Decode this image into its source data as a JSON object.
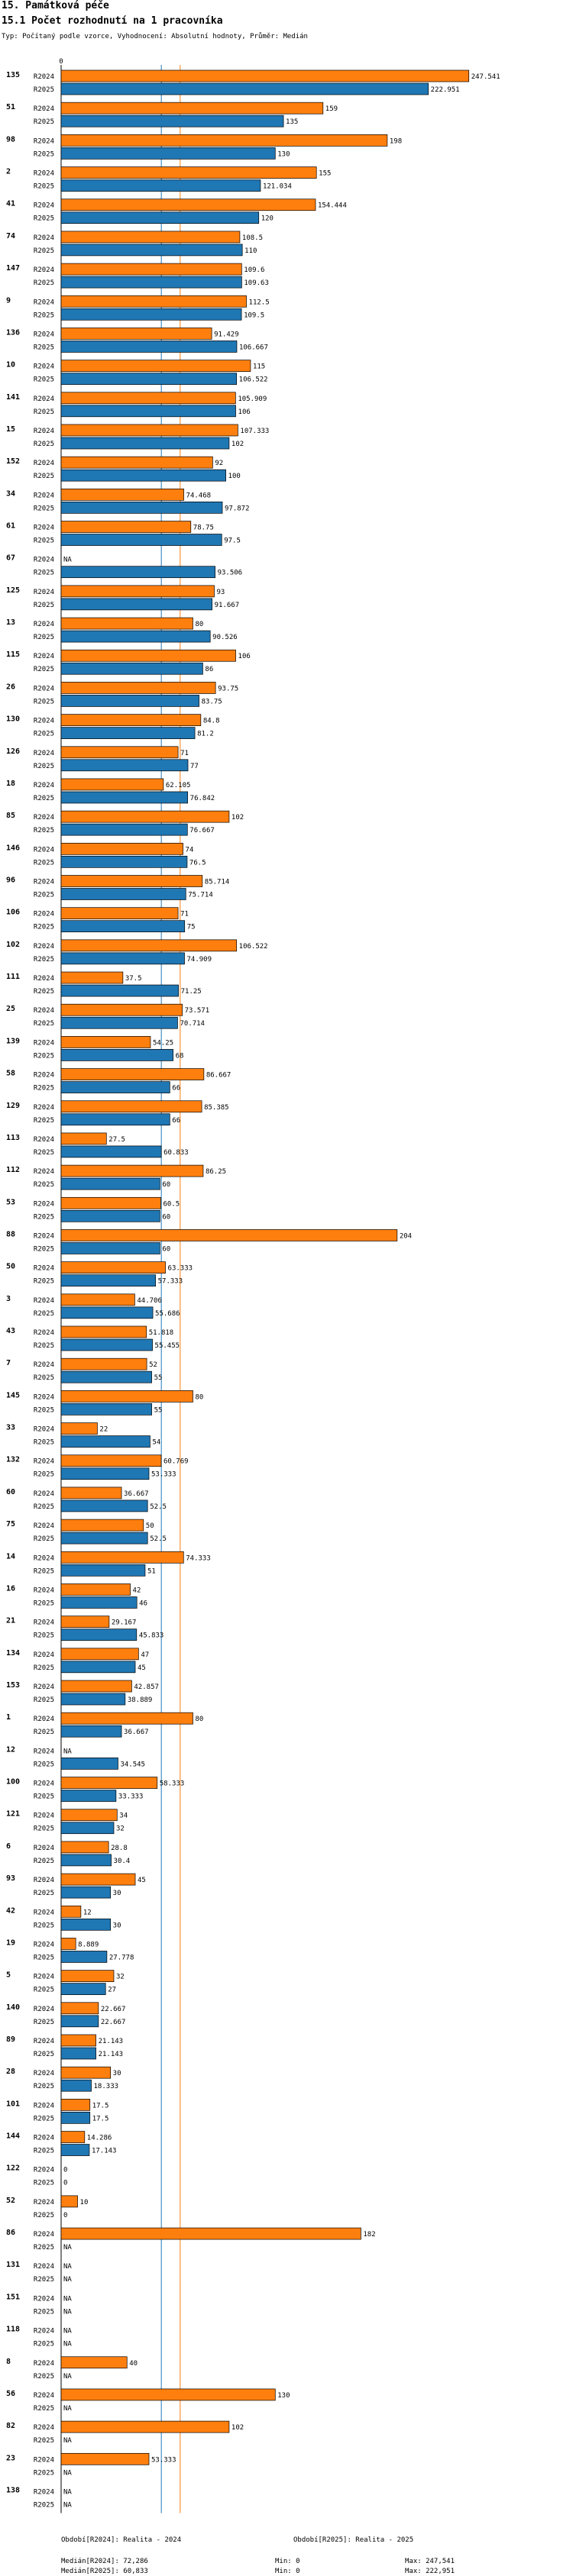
{
  "header": {
    "title": "15. Památková péče",
    "subtitle": "15.1 Počet rozhodnutí na 1 pracovníka",
    "description": "Typ: Počítaný podle vzorce, Vyhodnocení: Absolutní hodnoty, Průměr: Medián"
  },
  "colors": {
    "r2024": "#ff7f0e",
    "r2025": "#1f77b4"
  },
  "chart_data": {
    "type": "bar",
    "orientation": "horizontal",
    "axis_zero_label": "0",
    "xlim": [
      0,
      250
    ],
    "na_label": "NA",
    "series_names": [
      "R2024",
      "R2025"
    ],
    "median_lines": {
      "R2024": 72.286,
      "R2025": 60.833
    },
    "groups": [
      {
        "id": "135",
        "r2024": 247.541,
        "r2025": 222.951
      },
      {
        "id": "51",
        "r2024": 159,
        "r2025": 135
      },
      {
        "id": "98",
        "r2024": 198,
        "r2025": 130
      },
      {
        "id": "2",
        "r2024": 155,
        "r2025": 121.034
      },
      {
        "id": "41",
        "r2024": 154.444,
        "r2025": 120
      },
      {
        "id": "74",
        "r2024": 108.5,
        "r2025": 110
      },
      {
        "id": "147",
        "r2024": 109.6,
        "r2025": 109.63
      },
      {
        "id": "9",
        "r2024": 112.5,
        "r2025": 109.5
      },
      {
        "id": "136",
        "r2024": 91.429,
        "r2025": 106.667
      },
      {
        "id": "10",
        "r2024": 115,
        "r2025": 106.522
      },
      {
        "id": "141",
        "r2024": 105.909,
        "r2025": 106
      },
      {
        "id": "15",
        "r2024": 107.333,
        "r2025": 102
      },
      {
        "id": "152",
        "r2024": 92,
        "r2025": 100
      },
      {
        "id": "34",
        "r2024": 74.468,
        "r2025": 97.872
      },
      {
        "id": "61",
        "r2024": 78.75,
        "r2025": 97.5
      },
      {
        "id": "67",
        "r2024": null,
        "r2025": 93.506
      },
      {
        "id": "125",
        "r2024": 93,
        "r2025": 91.667
      },
      {
        "id": "13",
        "r2024": 80,
        "r2025": 90.526
      },
      {
        "id": "115",
        "r2024": 106,
        "r2025": 86
      },
      {
        "id": "26",
        "r2024": 93.75,
        "r2025": 83.75
      },
      {
        "id": "130",
        "r2024": 84.8,
        "r2025": 81.2
      },
      {
        "id": "126",
        "r2024": 71,
        "r2025": 77
      },
      {
        "id": "18",
        "r2024": 62.105,
        "r2025": 76.842
      },
      {
        "id": "85",
        "r2024": 102,
        "r2025": 76.667
      },
      {
        "id": "146",
        "r2024": 74,
        "r2025": 76.5
      },
      {
        "id": "96",
        "r2024": 85.714,
        "r2025": 75.714
      },
      {
        "id": "106",
        "r2024": 71,
        "r2025": 75
      },
      {
        "id": "102",
        "r2024": 106.522,
        "r2025": 74.909
      },
      {
        "id": "111",
        "r2024": 37.5,
        "r2025": 71.25
      },
      {
        "id": "25",
        "r2024": 73.571,
        "r2025": 70.714
      },
      {
        "id": "139",
        "r2024": 54.25,
        "r2025": 68
      },
      {
        "id": "58",
        "r2024": 86.667,
        "r2025": 66
      },
      {
        "id": "129",
        "r2024": 85.385,
        "r2025": 66
      },
      {
        "id": "113",
        "r2024": 27.5,
        "r2025": 60.833
      },
      {
        "id": "112",
        "r2024": 86.25,
        "r2025": 60
      },
      {
        "id": "53",
        "r2024": 60.5,
        "r2025": 60
      },
      {
        "id": "88",
        "r2024": 204,
        "r2025": 60
      },
      {
        "id": "50",
        "r2024": 63.333,
        "r2025": 57.333
      },
      {
        "id": "3",
        "r2024": 44.706,
        "r2025": 55.686
      },
      {
        "id": "43",
        "r2024": 51.818,
        "r2025": 55.455
      },
      {
        "id": "7",
        "r2024": 52,
        "r2025": 55
      },
      {
        "id": "145",
        "r2024": 80,
        "r2025": 55
      },
      {
        "id": "33",
        "r2024": 22,
        "r2025": 54
      },
      {
        "id": "132",
        "r2024": 60.769,
        "r2025": 53.333
      },
      {
        "id": "60",
        "r2024": 36.667,
        "r2025": 52.5
      },
      {
        "id": "75",
        "r2024": 50,
        "r2025": 52.5
      },
      {
        "id": "14",
        "r2024": 74.333,
        "r2025": 51
      },
      {
        "id": "16",
        "r2024": 42,
        "r2025": 46
      },
      {
        "id": "21",
        "r2024": 29.167,
        "r2025": 45.833
      },
      {
        "id": "134",
        "r2024": 47,
        "r2025": 45
      },
      {
        "id": "153",
        "r2024": 42.857,
        "r2025": 38.889
      },
      {
        "id": "1",
        "r2024": 80,
        "r2025": 36.667
      },
      {
        "id": "12",
        "r2024": null,
        "r2025": 34.545
      },
      {
        "id": "100",
        "r2024": 58.333,
        "r2025": 33.333
      },
      {
        "id": "121",
        "r2024": 34,
        "r2025": 32
      },
      {
        "id": "6",
        "r2024": 28.8,
        "r2025": 30.4
      },
      {
        "id": "93",
        "r2024": 45,
        "r2025": 30
      },
      {
        "id": "42",
        "r2024": 12,
        "r2025": 30
      },
      {
        "id": "19",
        "r2024": 8.889,
        "r2025": 27.778
      },
      {
        "id": "5",
        "r2024": 32,
        "r2025": 27
      },
      {
        "id": "140",
        "r2024": 22.667,
        "r2025": 22.667
      },
      {
        "id": "89",
        "r2024": 21.143,
        "r2025": 21.143
      },
      {
        "id": "28",
        "r2024": 30,
        "r2025": 18.333
      },
      {
        "id": "101",
        "r2024": 17.5,
        "r2025": 17.5
      },
      {
        "id": "144",
        "r2024": 14.286,
        "r2025": 17.143
      },
      {
        "id": "122",
        "r2024": 0,
        "r2025": 0
      },
      {
        "id": "52",
        "r2024": 10,
        "r2025": 0
      },
      {
        "id": "86",
        "r2024": 182,
        "r2025": null
      },
      {
        "id": "131",
        "r2024": null,
        "r2025": null
      },
      {
        "id": "151",
        "r2024": null,
        "r2025": null
      },
      {
        "id": "118",
        "r2024": null,
        "r2025": null
      },
      {
        "id": "8",
        "r2024": 40,
        "r2025": null
      },
      {
        "id": "56",
        "r2024": 130,
        "r2025": null
      },
      {
        "id": "82",
        "r2024": 102,
        "r2025": null
      },
      {
        "id": "23",
        "r2024": 53.333,
        "r2025": null
      },
      {
        "id": "138",
        "r2024": null,
        "r2025": null
      }
    ]
  },
  "footer": {
    "period1": "Období[R2024]: Realita - 2024",
    "period2": "Období[R2025]: Realita - 2025",
    "median1": "Medián[R2024]: 72,286",
    "median2": "Medián[R2025]: 60,833",
    "min1": "Min: 0",
    "min2": "Min: 0",
    "max1": "Max: 247,541",
    "max2": "Max: 222,951"
  }
}
